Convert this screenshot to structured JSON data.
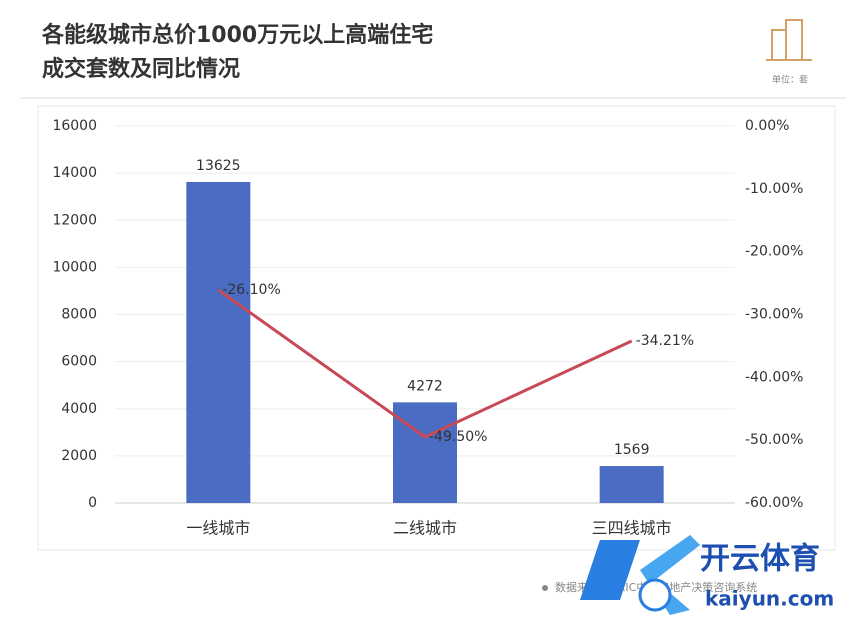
{
  "chart_data": {
    "type": "bar",
    "title": [
      "各能级城市总价1000万元以上高端住宅",
      "成交套数及同比情况"
    ],
    "unit": "单位：套",
    "source": "数据来源：CRIC中国房地产决策咨询系统",
    "categories": [
      "一线城市",
      "二线城市",
      "三四线城市"
    ],
    "series": [
      {
        "color": "#4a6cc3",
        "values": [
          13625,
          4272,
          1569
        ]
      },
      {
        "type": "line",
        "axis": "y2",
        "color": "#c84a56",
        "values": [
          -26.1,
          -49.5,
          -34.21
        ],
        "value_labels": [
          "-26.10%",
          "-49.50%",
          "-34.21%"
        ]
      }
    ],
    "ylim": [
      0,
      16000
    ],
    "yticks": [
      0,
      2000,
      4000,
      6000,
      8000,
      10000,
      12000,
      14000,
      16000
    ],
    "y2lim": [
      -60,
      0
    ],
    "y2ticks": [
      {
        "value": 0,
        "label": "0.00%"
      },
      {
        "value": -10,
        "label": "-10.00%"
      },
      {
        "value": -20,
        "label": "-20.00%"
      },
      {
        "value": -30,
        "label": "-30.00%"
      },
      {
        "value": -40,
        "label": "-40.00%"
      },
      {
        "value": -50,
        "label": "-50.00%"
      },
      {
        "value": -60,
        "label": "-60.00%"
      }
    ],
    "grid": true
  },
  "watermark": {
    "brand": "开云体育",
    "url": "kaiyun.com"
  }
}
